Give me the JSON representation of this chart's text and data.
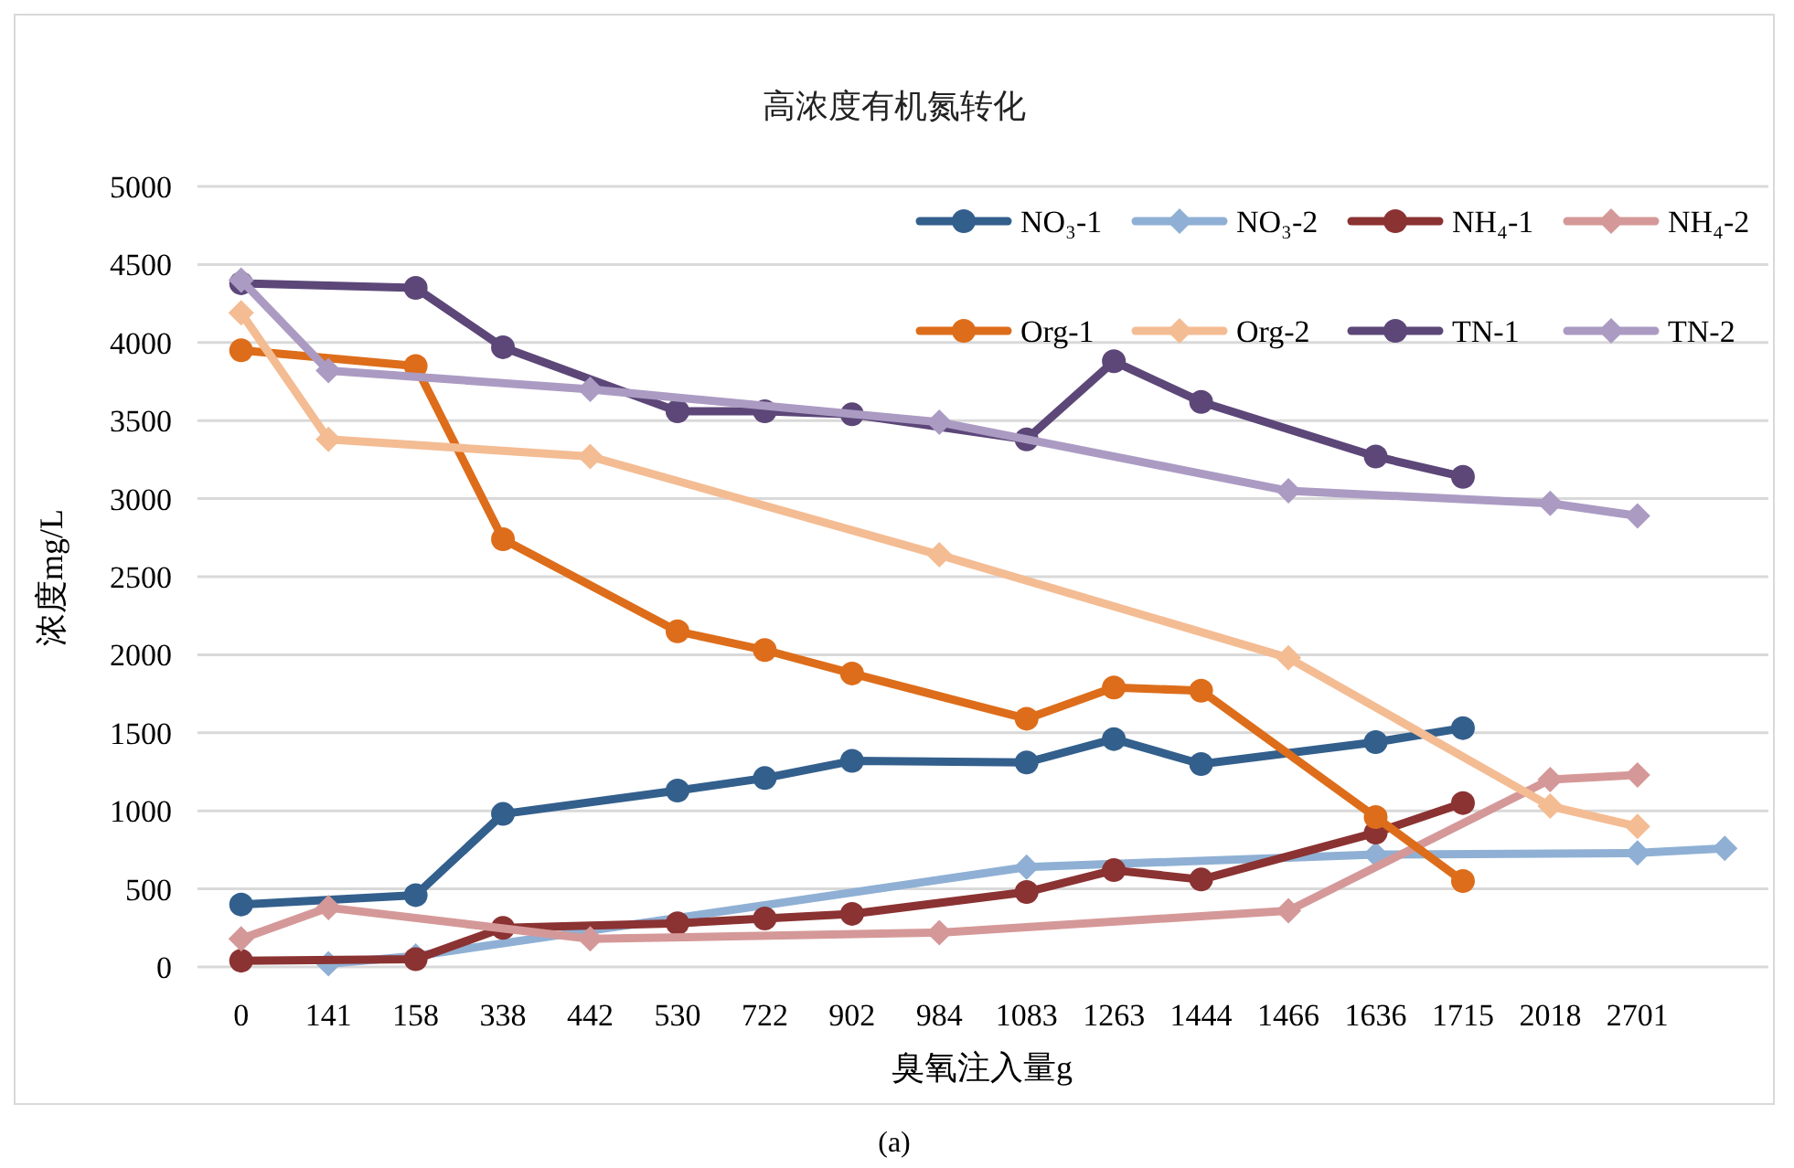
{
  "chart_data": {
    "type": "line",
    "title": "高浓度有机氮转化",
    "xlabel": "臭氧注入量g",
    "ylabel": "浓度mg/L",
    "annotations": [
      "(a)"
    ],
    "categories": [
      "0",
      "141",
      "158",
      "338",
      "442",
      "530",
      "722",
      "902",
      "984",
      "1083",
      "1263",
      "1444",
      "1466",
      "1636",
      "1715",
      "2018",
      "2701",
      null
    ],
    "ylim": [
      0,
      5000
    ],
    "yticks": [
      0,
      500,
      1000,
      1500,
      2000,
      2500,
      3000,
      3500,
      4000,
      4500,
      5000
    ],
    "grid": "y",
    "legend": "top right",
    "line_style": "solid",
    "series": [
      {
        "name": "NO₃-1",
        "color": "#335f8c",
        "marker": "circle",
        "values": [
          400,
          null,
          460,
          980,
          null,
          1130,
          1210,
          1320,
          null,
          1310,
          1460,
          1300,
          null,
          1440,
          1530,
          null,
          null,
          null
        ]
      },
      {
        "name": "NO₃-2",
        "color": "#8fb0d4",
        "marker": "diamond",
        "values": [
          null,
          20,
          70,
          null,
          null,
          null,
          null,
          null,
          null,
          640,
          null,
          null,
          null,
          720,
          null,
          null,
          730,
          760
        ]
      },
      {
        "name": "NH₄-1",
        "color": "#8b3232",
        "marker": "circle",
        "values": [
          40,
          null,
          50,
          250,
          null,
          280,
          310,
          340,
          null,
          480,
          620,
          560,
          null,
          860,
          1050,
          null,
          null,
          null
        ]
      },
      {
        "name": "NH₄-2",
        "color": "#d59898",
        "marker": "diamond",
        "values": [
          180,
          380,
          null,
          null,
          180,
          null,
          null,
          null,
          220,
          null,
          null,
          null,
          360,
          null,
          null,
          1200,
          1230,
          null
        ]
      },
      {
        "name": "Org-1",
        "color": "#dd6d1a",
        "marker": "circle",
        "values": [
          3950,
          null,
          3850,
          2740,
          null,
          2150,
          2030,
          1880,
          null,
          1590,
          1790,
          1770,
          null,
          960,
          550,
          null,
          null,
          null
        ]
      },
      {
        "name": "Org-2",
        "color": "#f4bc93",
        "marker": "diamond",
        "values": [
          4190,
          3380,
          null,
          null,
          3270,
          null,
          null,
          null,
          2640,
          null,
          null,
          null,
          1980,
          null,
          null,
          1030,
          900,
          null
        ]
      },
      {
        "name": "TN-1",
        "color": "#5c4778",
        "marker": "circle",
        "values": [
          4380,
          null,
          4350,
          3970,
          null,
          3560,
          3560,
          3540,
          null,
          3380,
          3880,
          3620,
          null,
          3270,
          3140,
          null,
          null,
          null
        ]
      },
      {
        "name": "TN-2",
        "color": "#ab9bc3",
        "marker": "diamond",
        "values": [
          4400,
          3820,
          null,
          null,
          3700,
          null,
          null,
          null,
          3490,
          null,
          null,
          null,
          3050,
          null,
          null,
          2970,
          2890,
          null
        ]
      }
    ]
  }
}
